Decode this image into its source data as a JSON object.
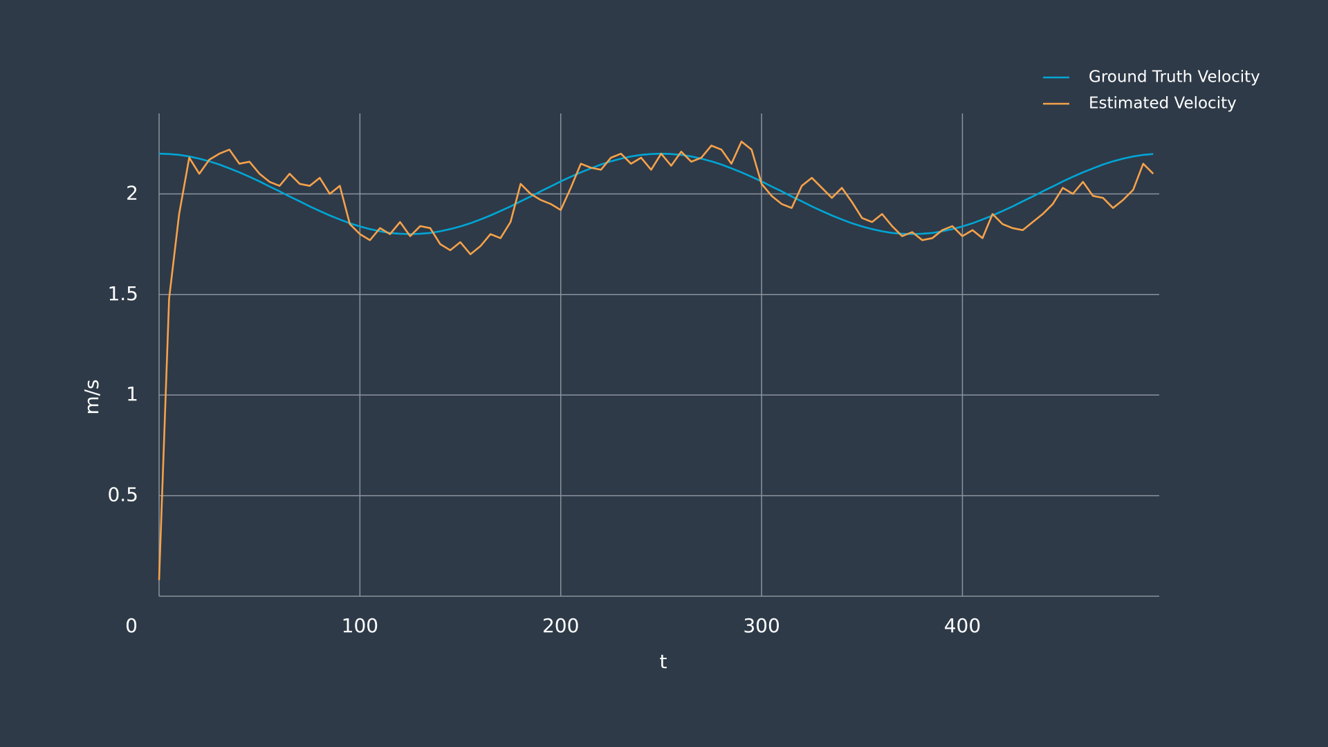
{
  "chart_data": {
    "type": "line",
    "x_label": "t",
    "y_label": "m/s",
    "x": [
      0,
      5,
      10,
      15,
      20,
      25,
      30,
      35,
      40,
      45,
      50,
      55,
      60,
      65,
      70,
      75,
      80,
      85,
      90,
      95,
      100,
      105,
      110,
      115,
      120,
      125,
      130,
      135,
      140,
      145,
      150,
      155,
      160,
      165,
      170,
      175,
      180,
      185,
      190,
      195,
      200,
      205,
      210,
      215,
      220,
      225,
      230,
      235,
      240,
      245,
      250,
      255,
      260,
      265,
      270,
      275,
      280,
      285,
      290,
      295,
      300,
      305,
      310,
      315,
      320,
      325,
      330,
      335,
      340,
      345,
      350,
      355,
      360,
      365,
      370,
      375,
      380,
      385,
      390,
      395,
      400,
      405,
      410,
      415,
      420,
      425,
      430,
      435,
      440,
      445,
      450,
      455,
      460,
      465,
      470,
      475,
      480,
      485,
      490,
      495
    ],
    "series": [
      {
        "name": "Ground Truth Velocity",
        "color": "#00a6d6",
        "values": [
          2.2,
          2.198,
          2.194,
          2.186,
          2.175,
          2.162,
          2.146,
          2.127,
          2.107,
          2.085,
          2.062,
          2.037,
          2.013,
          1.987,
          1.963,
          1.938,
          1.915,
          1.893,
          1.873,
          1.854,
          1.838,
          1.825,
          1.814,
          1.806,
          1.802,
          1.8,
          1.802,
          1.806,
          1.814,
          1.825,
          1.838,
          1.854,
          1.873,
          1.893,
          1.915,
          1.938,
          1.963,
          1.987,
          2.013,
          2.037,
          2.062,
          2.085,
          2.107,
          2.127,
          2.146,
          2.162,
          2.175,
          2.186,
          2.194,
          2.198,
          2.2,
          2.198,
          2.194,
          2.186,
          2.175,
          2.162,
          2.146,
          2.127,
          2.107,
          2.085,
          2.062,
          2.037,
          2.013,
          1.987,
          1.963,
          1.938,
          1.915,
          1.893,
          1.873,
          1.854,
          1.838,
          1.825,
          1.814,
          1.806,
          1.802,
          1.8,
          1.802,
          1.806,
          1.814,
          1.825,
          1.838,
          1.854,
          1.873,
          1.893,
          1.915,
          1.938,
          1.963,
          1.987,
          2.013,
          2.037,
          2.062,
          2.085,
          2.107,
          2.127,
          2.146,
          2.162,
          2.175,
          2.186,
          2.194,
          2.198
        ]
      },
      {
        "name": "Estimated Velocity",
        "color": "#f7a24a",
        "values": [
          0.08,
          1.48,
          1.9,
          2.18,
          2.1,
          2.17,
          2.2,
          2.22,
          2.15,
          2.16,
          2.1,
          2.06,
          2.04,
          2.1,
          2.05,
          2.04,
          2.08,
          2.0,
          2.04,
          1.85,
          1.8,
          1.77,
          1.83,
          1.8,
          1.86,
          1.79,
          1.84,
          1.83,
          1.75,
          1.72,
          1.76,
          1.7,
          1.74,
          1.8,
          1.78,
          1.86,
          2.05,
          2.0,
          1.97,
          1.95,
          1.92,
          2.03,
          2.15,
          2.13,
          2.12,
          2.18,
          2.2,
          2.15,
          2.18,
          2.12,
          2.2,
          2.14,
          2.21,
          2.16,
          2.18,
          2.24,
          2.22,
          2.15,
          2.26,
          2.22,
          2.05,
          1.99,
          1.95,
          1.93,
          2.04,
          2.08,
          2.03,
          1.98,
          2.03,
          1.96,
          1.88,
          1.86,
          1.9,
          1.84,
          1.79,
          1.81,
          1.77,
          1.78,
          1.82,
          1.84,
          1.79,
          1.82,
          1.78,
          1.9,
          1.85,
          1.83,
          1.82,
          1.86,
          1.9,
          1.95,
          2.03,
          2.0,
          2.06,
          1.99,
          1.98,
          1.93,
          1.97,
          2.02,
          2.15,
          2.1
        ]
      }
    ],
    "xlim": [
      0,
      498
    ],
    "ylim": [
      0,
      2.4
    ],
    "xticks": [
      0,
      100,
      200,
      300,
      400
    ],
    "yticks": [
      0.5,
      1,
      1.5,
      2
    ],
    "grid": true,
    "legend": "top-right"
  }
}
